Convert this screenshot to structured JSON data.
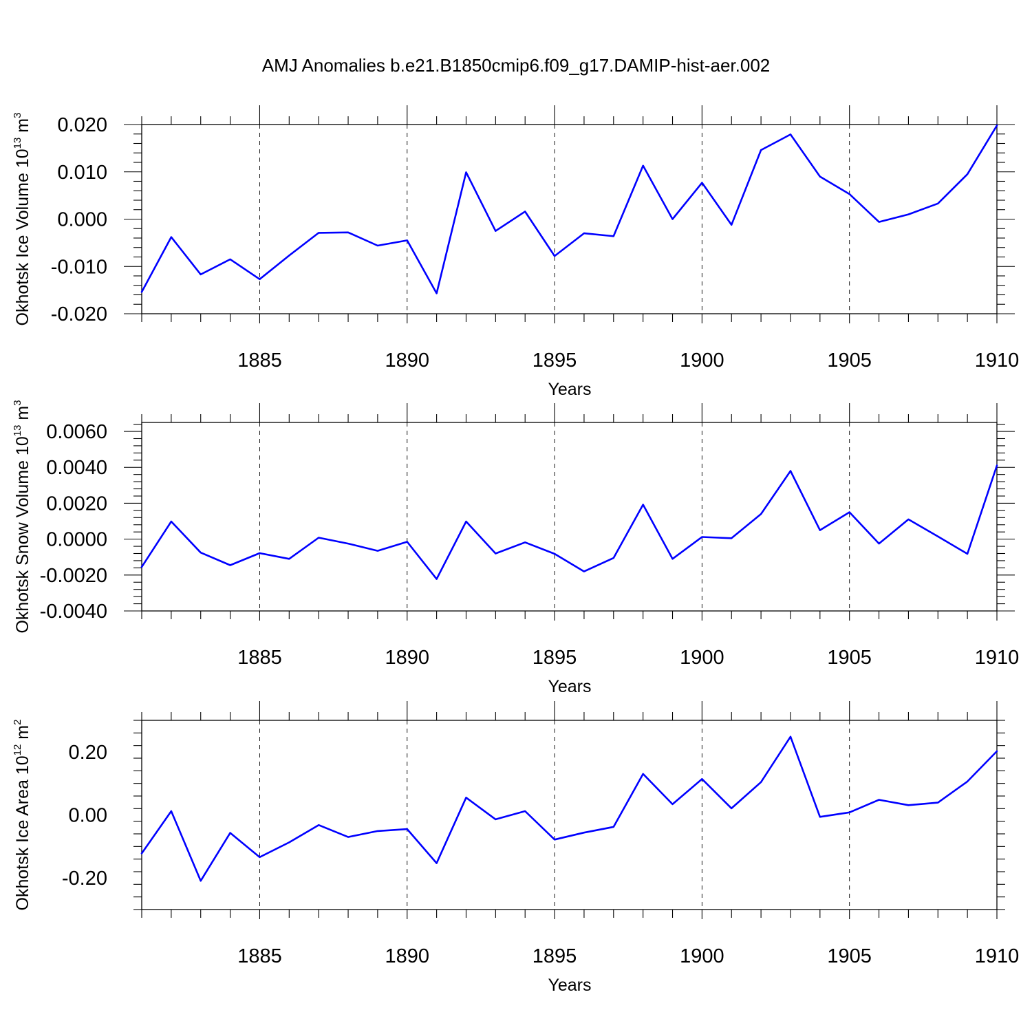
{
  "title": "AMJ Anomalies b.e21.B1850cmip6.f09_g17.DAMIP-hist-aer.002",
  "line_color": "#0000ff",
  "chart_data": [
    {
      "type": "line",
      "ylabel": "Okhotsk Ice Volume 10",
      "ylabel_exp": "13",
      "ylabel_unit": " m",
      "ylabel_unit_exp": "3",
      "xlabel": "Years",
      "xlim": [
        1881,
        1910
      ],
      "ylim": [
        -0.02,
        0.02
      ],
      "xticks": [
        1885,
        1890,
        1895,
        1900,
        1905,
        1910
      ],
      "xtick_labels": [
        "1885",
        "1890",
        "1895",
        "1900",
        "1905",
        "1910"
      ],
      "yticks": [
        -0.02,
        -0.01,
        0.0,
        0.01,
        0.02
      ],
      "ytick_labels": [
        "-0.020",
        "-0.010",
        "0.000",
        "0.010",
        "0.020"
      ],
      "x": [
        1881,
        1882,
        1883,
        1884,
        1885,
        1886,
        1887,
        1888,
        1889,
        1890,
        1891,
        1892,
        1893,
        1894,
        1895,
        1896,
        1897,
        1898,
        1899,
        1900,
        1901,
        1902,
        1903,
        1904,
        1905,
        1906,
        1907,
        1908,
        1909,
        1910
      ],
      "values": [
        -0.0154,
        -0.0038,
        -0.0117,
        -0.0085,
        -0.0127,
        -0.0077,
        -0.0029,
        -0.0028,
        -0.0056,
        -0.0045,
        -0.0157,
        0.0099,
        -0.0025,
        0.0016,
        -0.0078,
        -0.003,
        -0.0036,
        0.0113,
        0.0,
        0.0077,
        -0.0012,
        0.0146,
        0.0179,
        0.009,
        0.0053,
        -0.0006,
        0.001,
        0.0033,
        0.0095,
        0.0198
      ]
    },
    {
      "type": "line",
      "ylabel": "Okhotsk Snow Volume 10",
      "ylabel_exp": "13",
      "ylabel_unit": " m",
      "ylabel_unit_exp": "3",
      "xlabel": "Years",
      "xlim": [
        1881,
        1910
      ],
      "ylim": [
        -0.004,
        0.0065
      ],
      "xticks": [
        1885,
        1890,
        1895,
        1900,
        1905,
        1910
      ],
      "xtick_labels": [
        "1885",
        "1890",
        "1895",
        "1900",
        "1905",
        "1910"
      ],
      "yticks": [
        -0.004,
        -0.002,
        0.0,
        0.002,
        0.004,
        0.006
      ],
      "ytick_labels": [
        "-0.0040",
        "-0.0020",
        "0.0000",
        "0.0020",
        "0.0040",
        "0.0060"
      ],
      "x": [
        1881,
        1882,
        1883,
        1884,
        1885,
        1886,
        1887,
        1888,
        1889,
        1890,
        1891,
        1892,
        1893,
        1894,
        1895,
        1896,
        1897,
        1898,
        1899,
        1900,
        1901,
        1902,
        1903,
        1904,
        1905,
        1906,
        1907,
        1908,
        1909,
        1910
      ],
      "values": [
        -0.00155,
        0.00098,
        -0.00075,
        -0.00145,
        -0.00078,
        -0.0011,
        8e-05,
        -0.00025,
        -0.00065,
        -0.00015,
        -0.00222,
        0.00098,
        -0.0008,
        -0.00018,
        -0.00082,
        -0.0018,
        -0.00105,
        0.00192,
        -0.0011,
        0.00012,
        5e-05,
        0.0014,
        0.0038,
        0.0005,
        0.0015,
        -0.00025,
        0.0011,
        0.00015,
        -0.00082,
        0.0041
      ]
    },
    {
      "type": "line",
      "ylabel": "Okhotsk Ice Area 10",
      "ylabel_exp": "12",
      "ylabel_unit": " m",
      "ylabel_unit_exp": "2",
      "xlabel": "Years",
      "xlim": [
        1881,
        1910
      ],
      "ylim": [
        -0.3,
        0.3
      ],
      "xticks": [
        1885,
        1890,
        1895,
        1900,
        1905,
        1910
      ],
      "xtick_labels": [
        "1885",
        "1890",
        "1895",
        "1900",
        "1905",
        "1910"
      ],
      "yticks": [
        -0.2,
        0.0,
        0.2
      ],
      "ytick_labels": [
        "-0.20",
        "0.00",
        "0.20"
      ],
      "x": [
        1881,
        1882,
        1883,
        1884,
        1885,
        1886,
        1887,
        1888,
        1889,
        1890,
        1891,
        1892,
        1893,
        1894,
        1895,
        1896,
        1897,
        1898,
        1899,
        1900,
        1901,
        1902,
        1903,
        1904,
        1905,
        1906,
        1907,
        1908,
        1909,
        1910
      ],
      "values": [
        -0.122,
        0.012,
        -0.209,
        -0.057,
        -0.134,
        -0.087,
        -0.032,
        -0.07,
        -0.051,
        -0.045,
        -0.153,
        0.055,
        -0.014,
        0.012,
        -0.078,
        -0.056,
        -0.038,
        0.13,
        0.034,
        0.114,
        0.021,
        0.104,
        0.248,
        -0.006,
        0.008,
        0.048,
        0.031,
        0.039,
        0.106,
        0.202
      ]
    }
  ]
}
